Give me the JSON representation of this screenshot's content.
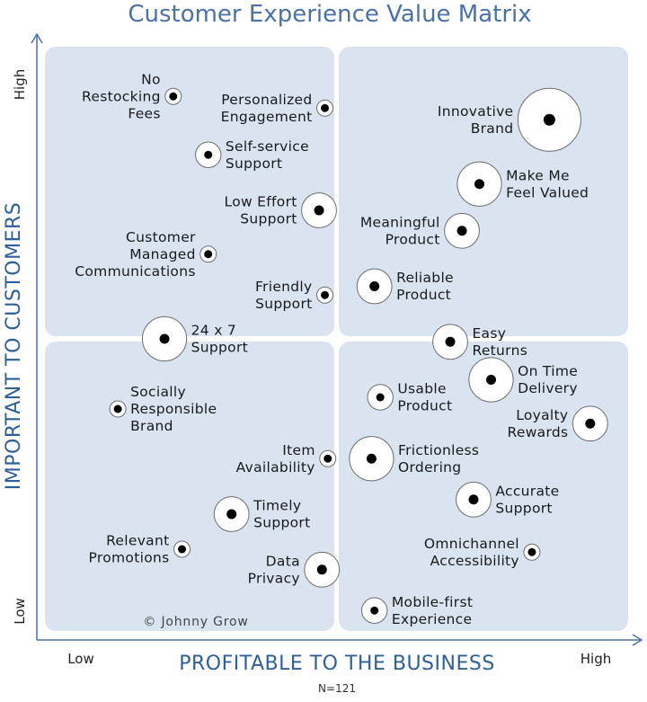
{
  "chart_data": {
    "type": "scatter",
    "title": "Customer Experience Value Matrix",
    "xlabel": "PROFITABLE TO THE BUSINESS",
    "ylabel": "IMPORTANT TO CUSTOMERS",
    "x_ticks": [
      "Low",
      "High"
    ],
    "y_ticks": [
      "Low",
      "High"
    ],
    "xlim": [
      0,
      10
    ],
    "ylim": [
      0,
      10
    ],
    "footnote": "N=121",
    "copyright": "© Johnny Grow",
    "colors": {
      "quadrant": "#dae3f0",
      "axis": "#4a72a8",
      "title": "#4a72a8",
      "dot": "#000000"
    },
    "points": [
      {
        "label": [
          "No",
          "Restocking",
          "Fees"
        ],
        "x": 2.2,
        "y": 9.15,
        "size": 1,
        "label_side": "left"
      },
      {
        "label": [
          "Personalized",
          "Engagement"
        ],
        "x": 4.8,
        "y": 8.95,
        "size": 1,
        "label_side": "left"
      },
      {
        "label": [
          "Self-service",
          "Support"
        ],
        "x": 2.8,
        "y": 8.15,
        "size": 2,
        "label_side": "right"
      },
      {
        "label": [
          "Low Effort",
          "Support"
        ],
        "x": 4.7,
        "y": 7.2,
        "size": 3,
        "label_side": "left"
      },
      {
        "label": [
          "Customer",
          "Managed",
          "Communications"
        ],
        "x": 2.8,
        "y": 6.45,
        "size": 1,
        "label_side": "left"
      },
      {
        "label": [
          "Friendly",
          "Support"
        ],
        "x": 4.8,
        "y": 5.75,
        "size": 1,
        "label_side": "left"
      },
      {
        "label": [
          "24 x 7",
          "Support"
        ],
        "x": 2.05,
        "y": 5.0,
        "size": 4,
        "label_side": "right"
      },
      {
        "label": [
          "Innovative",
          "Brand"
        ],
        "x": 8.65,
        "y": 8.75,
        "size": 6,
        "label_side": "left"
      },
      {
        "label": [
          "Make Me",
          "Feel Valued"
        ],
        "x": 7.45,
        "y": 7.65,
        "size": 4,
        "label_side": "right"
      },
      {
        "label": [
          "Meaningful",
          "Product"
        ],
        "x": 7.15,
        "y": 6.85,
        "size": 3,
        "label_side": "left"
      },
      {
        "label": [
          "Reliable",
          "Product"
        ],
        "x": 5.65,
        "y": 5.9,
        "size": 3,
        "label_side": "right"
      },
      {
        "label": [
          "Easy",
          "Returns"
        ],
        "x": 6.95,
        "y": 4.95,
        "size": 3,
        "label_side": "right"
      },
      {
        "label": [
          "On Time",
          "Delivery"
        ],
        "x": 7.65,
        "y": 4.3,
        "size": 4,
        "label_side": "right"
      },
      {
        "label": [
          "Usable",
          "Product"
        ],
        "x": 5.75,
        "y": 4.0,
        "size": 2,
        "label_side": "right"
      },
      {
        "label": [
          "Socially",
          "Responsible",
          "Brand"
        ],
        "x": 1.25,
        "y": 3.8,
        "size": 1,
        "label_side": "right"
      },
      {
        "label": [
          "Loyalty",
          "Rewards"
        ],
        "x": 9.35,
        "y": 3.55,
        "size": 3,
        "label_side": "left"
      },
      {
        "label": [
          "Item",
          "Availability"
        ],
        "x": 4.85,
        "y": 2.95,
        "size": 1,
        "label_side": "left"
      },
      {
        "label": [
          "Frictionless",
          "Ordering"
        ],
        "x": 5.6,
        "y": 2.95,
        "size": 4,
        "label_side": "right"
      },
      {
        "label": [
          "Timely",
          "Support"
        ],
        "x": 3.2,
        "y": 2.0,
        "size": 3,
        "label_side": "right"
      },
      {
        "label": [
          "Accurate",
          "Support"
        ],
        "x": 7.35,
        "y": 2.25,
        "size": 3,
        "label_side": "right"
      },
      {
        "label": [
          "Relevant",
          "Promotions"
        ],
        "x": 2.35,
        "y": 1.4,
        "size": 1,
        "label_side": "left"
      },
      {
        "label": [
          "Omnichannel",
          "Accessibility"
        ],
        "x": 8.35,
        "y": 1.35,
        "size": 1,
        "label_side": "left"
      },
      {
        "label": [
          "Data",
          "Privacy"
        ],
        "x": 4.75,
        "y": 1.05,
        "size": 3,
        "label_side": "left"
      },
      {
        "label": [
          "Mobile-first",
          "Experience"
        ],
        "x": 5.65,
        "y": 0.35,
        "size": 2,
        "label_side": "right"
      }
    ]
  }
}
